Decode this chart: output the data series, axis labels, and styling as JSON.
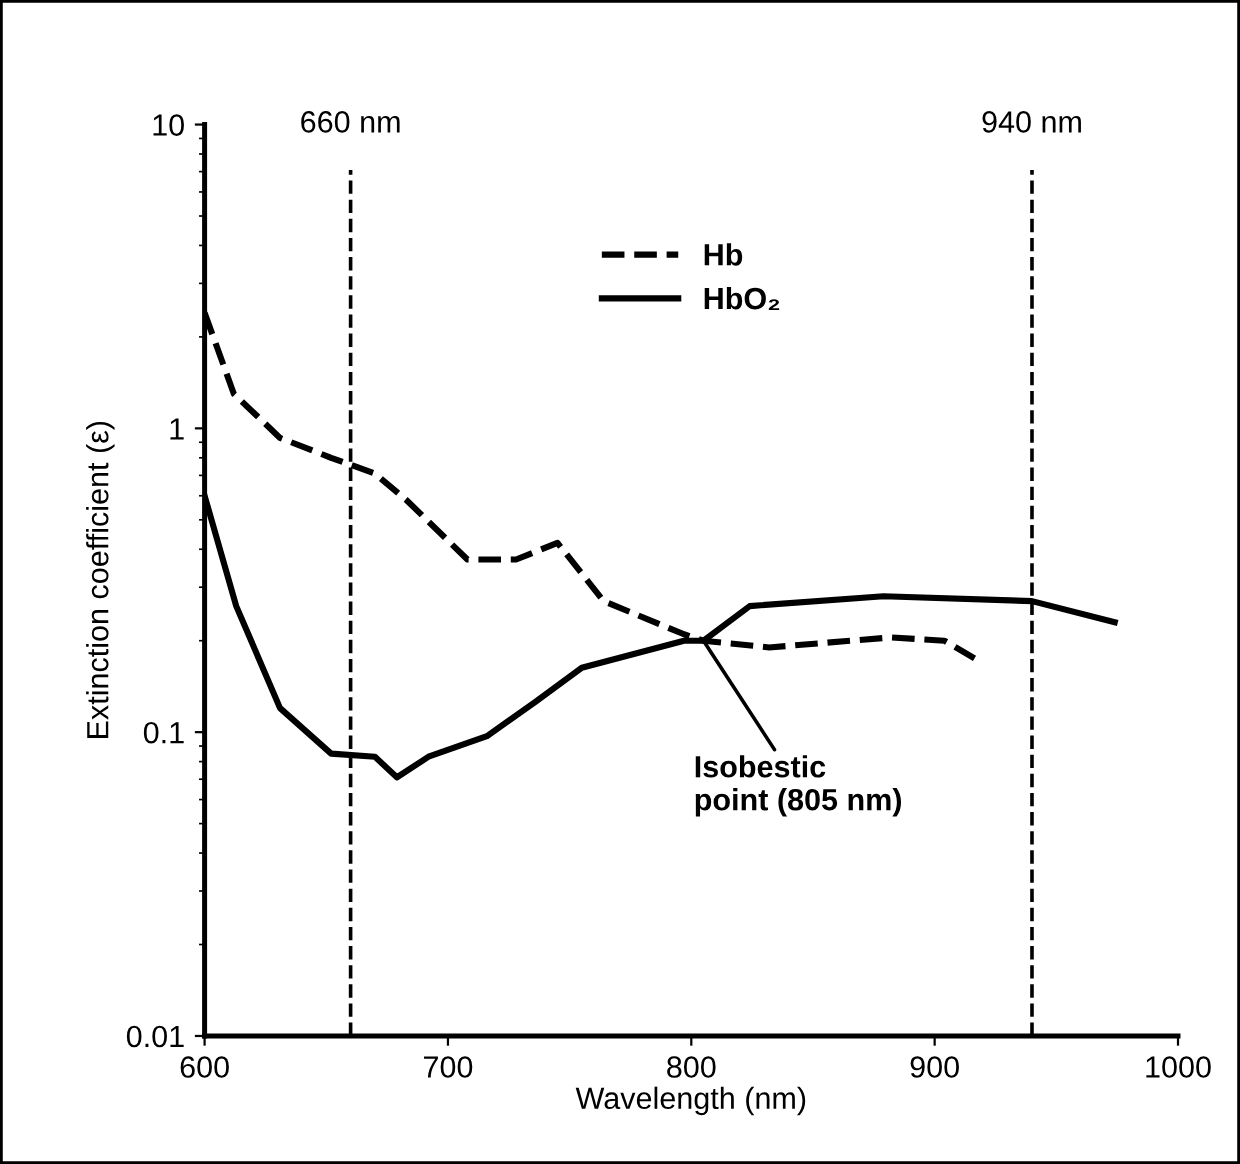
{
  "chart_data": {
    "type": "line",
    "xlabel": "Wavelength (nm)",
    "ylabel": "Extinction coefficient (ε)",
    "log": "y",
    "xlim": [
      600,
      1000
    ],
    "ylim": [
      0.01,
      10
    ],
    "xticks": [
      600,
      700,
      800,
      900,
      1000
    ],
    "yticks": [
      0.01,
      0.1,
      1,
      10
    ],
    "grid": false,
    "legend": "top",
    "marker": "none",
    "series": [
      {
        "name": "Hb",
        "color": "#000000",
        "line_style": "dashed",
        "x": [
          600,
          612,
          631,
          652,
          670,
          683,
          708,
          728,
          745,
          764,
          797,
          805,
          832,
          882,
          904,
          919
        ],
        "values": [
          2.4,
          1.3,
          0.93,
          0.8,
          0.71,
          0.58,
          0.37,
          0.37,
          0.42,
          0.27,
          0.21,
          0.2,
          0.19,
          0.205,
          0.2,
          0.17
        ]
      },
      {
        "name": "HbO₂",
        "color": "#000000",
        "line_style": "solid",
        "x": [
          600,
          613,
          631,
          652,
          670,
          679,
          692,
          716,
          736,
          755,
          797,
          805,
          824,
          879,
          940,
          974
        ],
        "values": [
          0.6,
          0.26,
          0.12,
          0.085,
          0.083,
          0.071,
          0.083,
          0.097,
          0.126,
          0.163,
          0.2,
          0.2,
          0.26,
          0.28,
          0.27,
          0.23
        ]
      }
    ],
    "ref_lines": [
      {
        "axis": "x",
        "value": 660,
        "label": "660 nm",
        "line_style": "dashed",
        "color": "#000000"
      },
      {
        "axis": "x",
        "value": 940,
        "label": "940 nm",
        "line_style": "dashed",
        "color": "#000000"
      }
    ],
    "annotations": [
      {
        "text": "Isobestic\npoint (805 nm)",
        "x": 805,
        "y": 0.2
      }
    ]
  }
}
